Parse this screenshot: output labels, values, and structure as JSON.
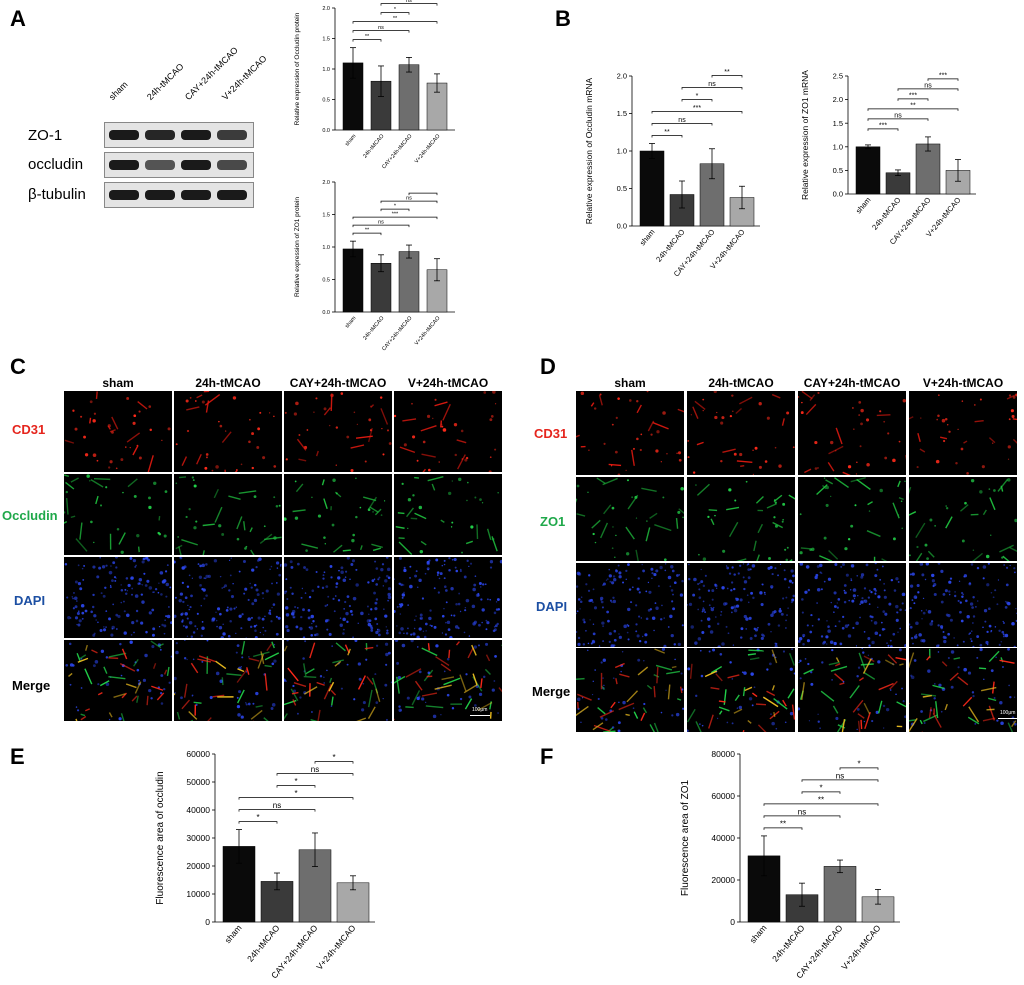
{
  "panels": {
    "A": {
      "letter": "A",
      "blot": {
        "lanes": [
          "sham",
          "24h-tMCAO",
          "CAY+24h-tMCAO",
          "V+24h-tMCAO"
        ],
        "rows": [
          "ZO-1",
          "occludin",
          "β-tubulin"
        ],
        "band_strength": [
          [
            1.0,
            0.9,
            1.0,
            0.75
          ],
          [
            1.0,
            0.55,
            1.0,
            0.65
          ],
          [
            1.0,
            1.0,
            1.0,
            1.0
          ]
        ]
      }
    },
    "B": {
      "letter": "B"
    },
    "C": {
      "letter": "C",
      "columns": [
        "sham",
        "24h-tMCAO",
        "CAY+24h-tMCAO",
        "V+24h-tMCAO"
      ],
      "rows": [
        {
          "label": "CD31",
          "color": "#e5251d"
        },
        {
          "label": "Occludin",
          "color": "#1fa84a"
        },
        {
          "label": "DAPI",
          "color": "#1c4fa3"
        },
        {
          "label": "Merge",
          "color": "#000000"
        }
      ],
      "scale_label": "100μm"
    },
    "D": {
      "letter": "D",
      "columns": [
        "sham",
        "24h-tMCAO",
        "CAY+24h-tMCAO",
        "V+24h-tMCAO"
      ],
      "rows": [
        {
          "label": "CD31",
          "color": "#e5251d"
        },
        {
          "label": "ZO1",
          "color": "#1fa84a"
        },
        {
          "label": "DAPI",
          "color": "#1c4fa3"
        },
        {
          "label": "Merge",
          "color": "#000000"
        }
      ],
      "scale_label": "100μm"
    },
    "E": {
      "letter": "E"
    },
    "F": {
      "letter": "F"
    }
  },
  "chart_data": [
    {
      "id": "A-occludin",
      "type": "bar",
      "categories": [
        "sham",
        "24h-tMCAO",
        "CAY+24h-tMCAO",
        "V+24h-tMCAO"
      ],
      "values": [
        1.1,
        0.8,
        1.07,
        0.77
      ],
      "errors": [
        0.25,
        0.25,
        0.12,
        0.15
      ],
      "colors": [
        "#0a0a0a",
        "#3a3a3a",
        "#6e6e6e",
        "#a8a8a8"
      ],
      "ylabel": "Relative expression of Occludin protein",
      "ylim": [
        0,
        2.0
      ],
      "yticks": [
        0.0,
        0.5,
        1.0,
        1.5,
        2.0
      ],
      "tick_decimals": 1,
      "comparisons": [
        {
          "from": 0,
          "to": 1,
          "label": "**"
        },
        {
          "from": 0,
          "to": 2,
          "label": "ns"
        },
        {
          "from": 0,
          "to": 3,
          "label": "**"
        },
        {
          "from": 1,
          "to": 2,
          "label": "*"
        },
        {
          "from": 1,
          "to": 3,
          "label": "ns"
        },
        {
          "from": 2,
          "to": 3,
          "label": "**"
        }
      ]
    },
    {
      "id": "A-zo1",
      "type": "bar",
      "categories": [
        "sham",
        "24h-tMCAO",
        "CAY+24h-tMCAO",
        "V+24h-tMCAO"
      ],
      "values": [
        0.97,
        0.75,
        0.93,
        0.65
      ],
      "errors": [
        0.12,
        0.13,
        0.1,
        0.17
      ],
      "colors": [
        "#0a0a0a",
        "#3a3a3a",
        "#6e6e6e",
        "#a8a8a8"
      ],
      "ylabel": "Relative expression of ZO1 protein",
      "ylim": [
        0,
        2.0
      ],
      "yticks": [
        0.0,
        0.5,
        1.0,
        1.5,
        2.0
      ],
      "tick_decimals": 1,
      "comparisons": [
        {
          "from": 0,
          "to": 1,
          "label": "**"
        },
        {
          "from": 0,
          "to": 2,
          "label": "ns"
        },
        {
          "from": 0,
          "to": 3,
          "label": "***"
        },
        {
          "from": 1,
          "to": 2,
          "label": "*"
        },
        {
          "from": 1,
          "to": 3,
          "label": "ns"
        },
        {
          "from": 2,
          "to": 3,
          "label": ""
        }
      ]
    },
    {
      "id": "B-occludin",
      "type": "bar",
      "categories": [
        "sham",
        "24h-tMCAO",
        "CAY+24h-tMCAO",
        "V+24h-tMCAO"
      ],
      "values": [
        1.0,
        0.42,
        0.83,
        0.38
      ],
      "errors": [
        0.1,
        0.18,
        0.2,
        0.15
      ],
      "colors": [
        "#0a0a0a",
        "#3a3a3a",
        "#6e6e6e",
        "#a8a8a8"
      ],
      "ylabel": "Relative expression of Occludin mRNA",
      "ylim": [
        0,
        2.0
      ],
      "yticks": [
        0.0,
        0.5,
        1.0,
        1.5,
        2.0
      ],
      "tick_decimals": 1,
      "comparisons": [
        {
          "from": 0,
          "to": 1,
          "label": "**"
        },
        {
          "from": 0,
          "to": 2,
          "label": "ns"
        },
        {
          "from": 0,
          "to": 3,
          "label": "***"
        },
        {
          "from": 1,
          "to": 2,
          "label": "*"
        },
        {
          "from": 1,
          "to": 3,
          "label": "ns"
        },
        {
          "from": 2,
          "to": 3,
          "label": "**"
        }
      ]
    },
    {
      "id": "B-zo1",
      "type": "bar",
      "categories": [
        "sham",
        "24h-tMCAO",
        "CAY+24h-tMCAO",
        "V+24h-tMCAO"
      ],
      "values": [
        1.0,
        0.45,
        1.06,
        0.5
      ],
      "errors": [
        0.04,
        0.06,
        0.15,
        0.23
      ],
      "colors": [
        "#0a0a0a",
        "#3a3a3a",
        "#6e6e6e",
        "#a8a8a8"
      ],
      "ylabel": "Relative expression of ZO1 mRNA",
      "ylim": [
        0,
        2.5
      ],
      "yticks": [
        0.0,
        0.5,
        1.0,
        1.5,
        2.0,
        2.5
      ],
      "tick_decimals": 1,
      "comparisons": [
        {
          "from": 0,
          "to": 1,
          "label": "***"
        },
        {
          "from": 0,
          "to": 2,
          "label": "ns"
        },
        {
          "from": 0,
          "to": 3,
          "label": "**"
        },
        {
          "from": 1,
          "to": 2,
          "label": "***"
        },
        {
          "from": 1,
          "to": 3,
          "label": "ns"
        },
        {
          "from": 2,
          "to": 3,
          "label": "***"
        }
      ]
    },
    {
      "id": "E",
      "type": "bar",
      "categories": [
        "sham",
        "24h-tMCAO",
        "CAY+24h-tMCAO",
        "V+24h-tMCAO"
      ],
      "values": [
        27000,
        14500,
        25800,
        14000
      ],
      "errors": [
        6000,
        3000,
        6000,
        2500
      ],
      "colors": [
        "#0a0a0a",
        "#3a3a3a",
        "#6e6e6e",
        "#a8a8a8"
      ],
      "ylabel": "Fluorescence area of occludin",
      "ylim": [
        0,
        60000
      ],
      "yticks": [
        0,
        10000,
        20000,
        30000,
        40000,
        50000,
        60000
      ],
      "tick_decimals": 0,
      "comparisons": [
        {
          "from": 0,
          "to": 1,
          "label": "*"
        },
        {
          "from": 0,
          "to": 2,
          "label": "ns"
        },
        {
          "from": 0,
          "to": 3,
          "label": "*"
        },
        {
          "from": 1,
          "to": 2,
          "label": "*"
        },
        {
          "from": 1,
          "to": 3,
          "label": "ns"
        },
        {
          "from": 2,
          "to": 3,
          "label": "*"
        }
      ]
    },
    {
      "id": "F",
      "type": "bar",
      "categories": [
        "sham",
        "24h-tMCAO",
        "CAY+24h-tMCAO",
        "V+24h-tMCAO"
      ],
      "values": [
        31500,
        13000,
        26500,
        12000
      ],
      "errors": [
        9500,
        5500,
        3000,
        3500
      ],
      "colors": [
        "#0a0a0a",
        "#3a3a3a",
        "#6e6e6e",
        "#a8a8a8"
      ],
      "ylabel": "Fluorescence area of ZO1",
      "ylim": [
        0,
        80000
      ],
      "yticks": [
        0,
        20000,
        40000,
        60000,
        80000
      ],
      "tick_decimals": 0,
      "comparisons": [
        {
          "from": 0,
          "to": 1,
          "label": "**"
        },
        {
          "from": 0,
          "to": 2,
          "label": "ns"
        },
        {
          "from": 0,
          "to": 3,
          "label": "**"
        },
        {
          "from": 1,
          "to": 2,
          "label": "*"
        },
        {
          "from": 1,
          "to": 3,
          "label": "ns"
        },
        {
          "from": 2,
          "to": 3,
          "label": "*"
        }
      ]
    }
  ]
}
